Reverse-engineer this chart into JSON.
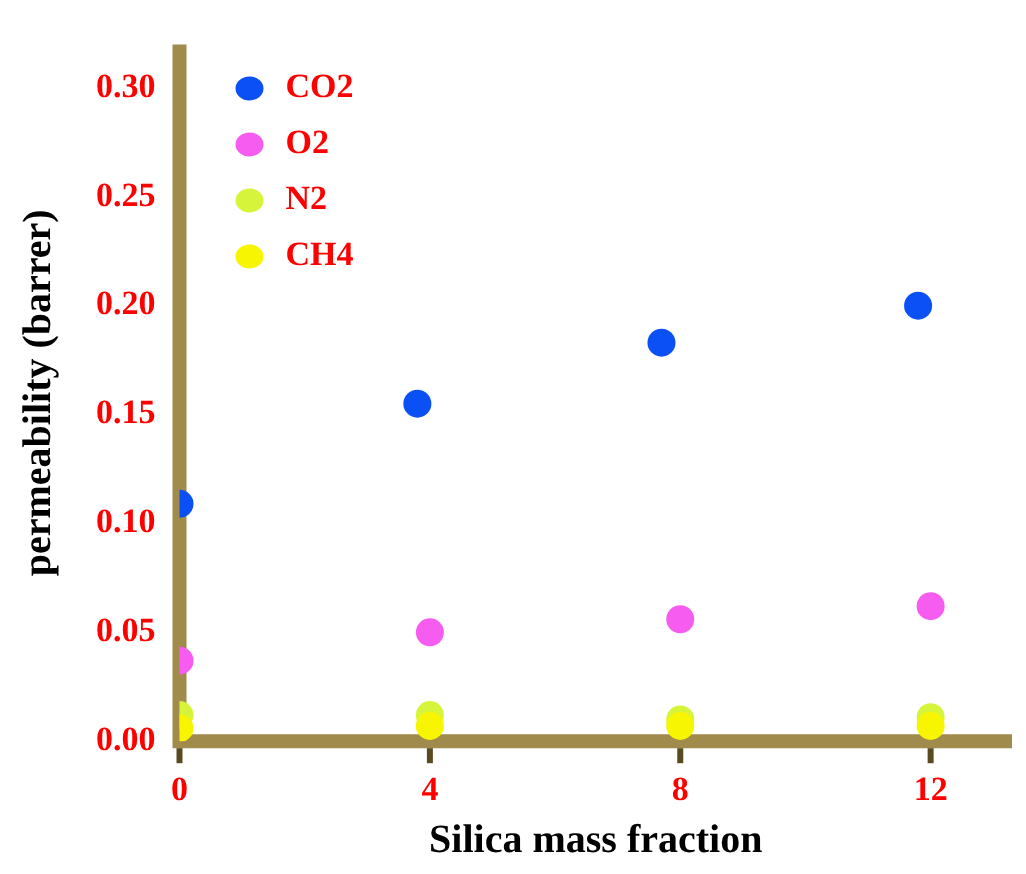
{
  "chart_data": {
    "type": "scatter",
    "xlabel": "Silica mass fraction",
    "ylabel": "permeability (barrer)",
    "xlim": [
      0,
      13.3
    ],
    "xticks": [
      0,
      4,
      8,
      12
    ],
    "ylim": [
      0,
      0.32
    ],
    "yticks": [
      {
        "value": 0,
        "label": "0.00"
      },
      {
        "value": 0.05,
        "label": "0.05"
      },
      {
        "value": 0.1,
        "label": "0.10"
      },
      {
        "value": 0.15,
        "label": "0.15"
      },
      {
        "value": 0.2,
        "label": "0.20"
      },
      {
        "value": 0.25,
        "label": "0.25"
      },
      {
        "value": 0.3,
        "label": "0.30"
      }
    ],
    "grid": false,
    "legend": "top left",
    "marker": "circle",
    "series": [
      {
        "name": "CO2",
        "color": "#0a50f5",
        "x": [
          0,
          3.8,
          7.7,
          11.8
        ],
        "values": [
          0.109,
          0.155,
          0.183,
          0.2
        ]
      },
      {
        "name": "O2",
        "color": "#f75cf0",
        "x": [
          0,
          4,
          8,
          12
        ],
        "values": [
          0.037,
          0.05,
          0.056,
          0.062
        ]
      },
      {
        "name": "N2",
        "color": "#d6f53a",
        "x": [
          0,
          4,
          8,
          12
        ],
        "values": [
          0.012,
          0.012,
          0.01,
          0.011
        ]
      },
      {
        "name": "CH4",
        "color": "#f7f500",
        "x": [
          0,
          4,
          8,
          12
        ],
        "values": [
          0.006,
          0.007,
          0.007,
          0.007
        ]
      }
    ]
  }
}
